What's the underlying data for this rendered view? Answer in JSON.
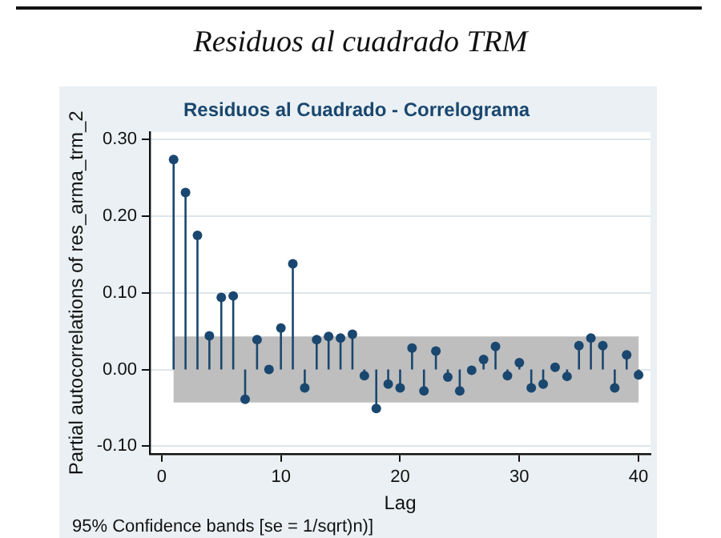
{
  "chart_data": {
    "type": "lollipop",
    "title": "Residuos al cuadrado TRM",
    "subtitle": "Residuos al Cuadrado - Correlograma",
    "xlabel": "Lag",
    "ylabel": "Partial autocorrelations of res_arma_trm_2",
    "annotations": [
      "95% Confidence bands [se = 1/sqrt)n)]"
    ],
    "x": [
      1,
      2,
      3,
      4,
      5,
      6,
      7,
      8,
      9,
      10,
      11,
      12,
      13,
      14,
      15,
      16,
      17,
      18,
      19,
      20,
      21,
      22,
      23,
      24,
      25,
      26,
      27,
      28,
      29,
      30,
      31,
      32,
      33,
      34,
      35,
      36,
      37,
      38,
      39,
      40
    ],
    "series": [
      {
        "color": "#1a476f",
        "values": [
          0.274,
          0.231,
          0.175,
          0.044,
          0.094,
          0.096,
          -0.039,
          0.039,
          0.0,
          0.054,
          0.138,
          -0.024,
          0.039,
          0.043,
          0.041,
          0.046,
          -0.008,
          -0.051,
          -0.019,
          -0.024,
          0.028,
          -0.028,
          0.024,
          -0.01,
          -0.028,
          -0.001,
          0.013,
          0.03,
          -0.008,
          0.009,
          -0.024,
          -0.019,
          0.003,
          -0.009,
          0.031,
          0.041,
          0.031,
          -0.024,
          0.019,
          -0.007
        ]
      }
    ],
    "bands": [
      {
        "axis": "y",
        "from": -0.043,
        "to": 0.043,
        "color": "#bebebe"
      }
    ],
    "xlim": [
      -1,
      41
    ],
    "xticks": [
      0,
      10,
      20,
      30,
      40
    ],
    "ylim": [
      -0.11,
      0.31
    ],
    "yticks": [
      {
        "value": -0.1,
        "label": "-0.10"
      },
      {
        "value": 0,
        "label": "0.00"
      },
      {
        "value": 0.1,
        "label": "0.10"
      },
      {
        "value": 0.2,
        "label": "0.20"
      },
      {
        "value": 0.3,
        "label": "0.30"
      }
    ],
    "grid": "y",
    "marker": "circle",
    "legend": false
  }
}
